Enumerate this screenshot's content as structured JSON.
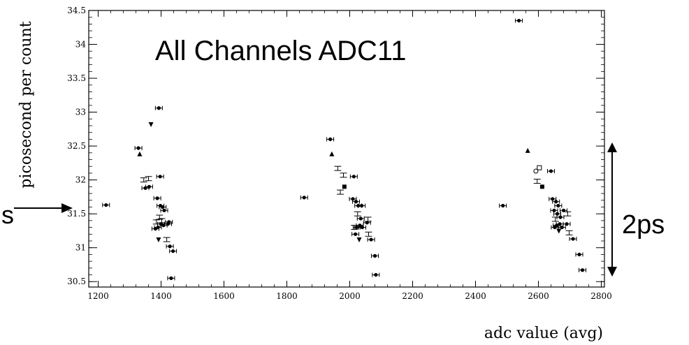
{
  "chart_data": {
    "type": "scatter",
    "title": "All Channels ADC11",
    "xlabel": "adc value (avg)",
    "ylabel": "picosecond per count",
    "xlim": [
      1170,
      2810
    ],
    "ylim": [
      30.42,
      34.5
    ],
    "x_ticks": [
      "1200",
      "1400",
      "1600",
      "1800",
      "2000",
      "2200",
      "2400",
      "2600",
      "2800"
    ],
    "y_ticks": [
      "30.5",
      "31",
      "31.5",
      "32",
      "32.5",
      "33",
      "33.5",
      "34",
      "34.5"
    ],
    "grid": false,
    "annotations": {
      "range_label": "2ps",
      "left_label": "s"
    },
    "points": [
      {
        "x": 1225,
        "y": 31.63,
        "m": "star"
      },
      {
        "x": 1328,
        "y": 32.47,
        "m": "star"
      },
      {
        "x": 1332,
        "y": 32.38,
        "m": "up"
      },
      {
        "x": 1345,
        "y": 32.0,
        "m": "box"
      },
      {
        "x": 1350,
        "y": 31.88,
        "m": "star"
      },
      {
        "x": 1360,
        "y": 32.02,
        "m": "box"
      },
      {
        "x": 1362,
        "y": 31.9,
        "m": "star"
      },
      {
        "x": 1368,
        "y": 32.82,
        "m": "down"
      },
      {
        "x": 1382,
        "y": 31.28,
        "m": "star"
      },
      {
        "x": 1385,
        "y": 31.38,
        "m": "box"
      },
      {
        "x": 1388,
        "y": 31.73,
        "m": "star"
      },
      {
        "x": 1390,
        "y": 31.3,
        "m": "star"
      },
      {
        "x": 1392,
        "y": 31.12,
        "m": "down"
      },
      {
        "x": 1393,
        "y": 33.06,
        "m": "star"
      },
      {
        "x": 1395,
        "y": 31.45,
        "m": "box"
      },
      {
        "x": 1397,
        "y": 32.05,
        "m": "star"
      },
      {
        "x": 1398,
        "y": 31.62,
        "m": "star"
      },
      {
        "x": 1400,
        "y": 31.35,
        "m": "star"
      },
      {
        "x": 1402,
        "y": 31.4,
        "m": "box"
      },
      {
        "x": 1405,
        "y": 31.6,
        "m": "star"
      },
      {
        "x": 1408,
        "y": 31.33,
        "m": "star"
      },
      {
        "x": 1410,
        "y": 31.55,
        "m": "star"
      },
      {
        "x": 1418,
        "y": 31.12,
        "m": "box"
      },
      {
        "x": 1422,
        "y": 31.35,
        "m": "star"
      },
      {
        "x": 1425,
        "y": 31.38,
        "m": "star"
      },
      {
        "x": 1428,
        "y": 31.02,
        "m": "star"
      },
      {
        "x": 1432,
        "y": 30.55,
        "m": "star"
      },
      {
        "x": 1438,
        "y": 30.95,
        "m": "star"
      },
      {
        "x": 1855,
        "y": 31.74,
        "m": "star"
      },
      {
        "x": 1938,
        "y": 32.6,
        "m": "star"
      },
      {
        "x": 1943,
        "y": 32.38,
        "m": "up"
      },
      {
        "x": 1962,
        "y": 32.17,
        "m": "box"
      },
      {
        "x": 1970,
        "y": 31.82,
        "m": "box"
      },
      {
        "x": 1980,
        "y": 32.07,
        "m": "box"
      },
      {
        "x": 1983,
        "y": 31.9,
        "m": "square"
      },
      {
        "x": 2010,
        "y": 31.72,
        "m": "star"
      },
      {
        "x": 2013,
        "y": 32.05,
        "m": "star"
      },
      {
        "x": 2015,
        "y": 31.3,
        "m": "box"
      },
      {
        "x": 2018,
        "y": 31.2,
        "m": "star"
      },
      {
        "x": 2020,
        "y": 31.68,
        "m": "star"
      },
      {
        "x": 2022,
        "y": 31.3,
        "m": "star"
      },
      {
        "x": 2025,
        "y": 31.5,
        "m": "box"
      },
      {
        "x": 2027,
        "y": 31.62,
        "m": "star"
      },
      {
        "x": 2030,
        "y": 31.12,
        "m": "down"
      },
      {
        "x": 2032,
        "y": 31.33,
        "m": "star"
      },
      {
        "x": 2035,
        "y": 31.43,
        "m": "star"
      },
      {
        "x": 2038,
        "y": 31.62,
        "m": "star"
      },
      {
        "x": 2040,
        "y": 31.3,
        "m": "star"
      },
      {
        "x": 2055,
        "y": 31.37,
        "m": "star"
      },
      {
        "x": 2058,
        "y": 31.42,
        "m": "box"
      },
      {
        "x": 2060,
        "y": 31.2,
        "m": "box"
      },
      {
        "x": 2068,
        "y": 31.12,
        "m": "star"
      },
      {
        "x": 2080,
        "y": 30.88,
        "m": "star"
      },
      {
        "x": 2083,
        "y": 30.6,
        "m": "star"
      },
      {
        "x": 2487,
        "y": 31.62,
        "m": "star"
      },
      {
        "x": 2538,
        "y": 34.35,
        "m": "star"
      },
      {
        "x": 2566,
        "y": 32.43,
        "m": "up"
      },
      {
        "x": 2592,
        "y": 32.13,
        "m": "circle"
      },
      {
        "x": 2596,
        "y": 31.98,
        "m": "box"
      },
      {
        "x": 2603,
        "y": 32.18,
        "m": "open-square"
      },
      {
        "x": 2612,
        "y": 31.9,
        "m": "square"
      },
      {
        "x": 2640,
        "y": 32.13,
        "m": "star"
      },
      {
        "x": 2645,
        "y": 31.72,
        "m": "star"
      },
      {
        "x": 2650,
        "y": 31.55,
        "m": "star"
      },
      {
        "x": 2652,
        "y": 31.3,
        "m": "star"
      },
      {
        "x": 2654,
        "y": 31.42,
        "m": "box"
      },
      {
        "x": 2656,
        "y": 31.68,
        "m": "star"
      },
      {
        "x": 2658,
        "y": 31.33,
        "m": "star"
      },
      {
        "x": 2660,
        "y": 31.5,
        "m": "star"
      },
      {
        "x": 2663,
        "y": 31.62,
        "m": "star"
      },
      {
        "x": 2665,
        "y": 31.25,
        "m": "down"
      },
      {
        "x": 2668,
        "y": 31.35,
        "m": "star"
      },
      {
        "x": 2670,
        "y": 31.45,
        "m": "star"
      },
      {
        "x": 2675,
        "y": 31.3,
        "m": "star"
      },
      {
        "x": 2680,
        "y": 31.55,
        "m": "star"
      },
      {
        "x": 2690,
        "y": 31.35,
        "m": "star"
      },
      {
        "x": 2693,
        "y": 31.5,
        "m": "box"
      },
      {
        "x": 2698,
        "y": 31.22,
        "m": "box"
      },
      {
        "x": 2710,
        "y": 31.13,
        "m": "star"
      },
      {
        "x": 2730,
        "y": 30.9,
        "m": "star"
      },
      {
        "x": 2740,
        "y": 30.67,
        "m": "star"
      }
    ]
  }
}
